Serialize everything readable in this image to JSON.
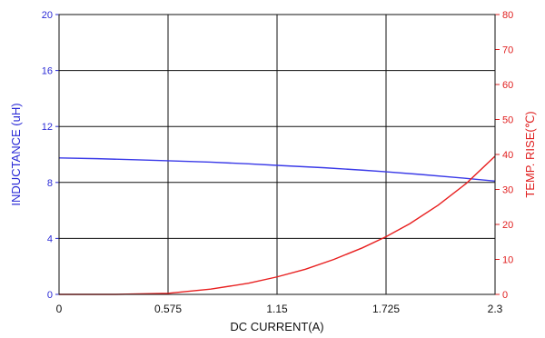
{
  "chart_data": {
    "type": "line",
    "xlabel": "DC CURRENT(A)",
    "ylabel_left": "INDUCTANCE (uH)",
    "ylabel_right": "TEMP. RISE(℃)",
    "x_ticks": [
      "0",
      "0.575",
      "1.15",
      "1.725",
      "2.3"
    ],
    "x_tick_values": [
      0,
      0.575,
      1.15,
      1.725,
      2.3
    ],
    "y_left_ticks": [
      "0",
      "4",
      "8",
      "12",
      "16",
      "20"
    ],
    "y_left_tick_values": [
      0,
      4,
      8,
      12,
      16,
      20
    ],
    "y_right_ticks": [
      "0",
      "10",
      "20",
      "30",
      "40",
      "50",
      "60",
      "70",
      "80"
    ],
    "y_right_tick_values": [
      0,
      10,
      20,
      30,
      40,
      50,
      60,
      70,
      80
    ],
    "xlim": [
      0,
      2.3
    ],
    "ylim_left": [
      0,
      20
    ],
    "ylim_right": [
      0,
      80
    ],
    "grid": true,
    "colors": {
      "left_axis": "#2a2ad6",
      "right_axis": "#e02020",
      "grid": "#111111"
    },
    "series": [
      {
        "axis": "left",
        "color": "#3a3ae8",
        "x": [
          0,
          0.2,
          0.4,
          0.575,
          0.8,
          1.0,
          1.15,
          1.4,
          1.6,
          1.725,
          1.9,
          2.1,
          2.3
        ],
        "y": [
          9.75,
          9.7,
          9.62,
          9.55,
          9.45,
          9.33,
          9.22,
          9.05,
          8.88,
          8.76,
          8.58,
          8.35,
          8.1
        ]
      },
      {
        "axis": "right",
        "color": "#e82020",
        "x": [
          0,
          0.3,
          0.575,
          0.8,
          1.0,
          1.15,
          1.3,
          1.45,
          1.6,
          1.725,
          1.85,
          2.0,
          2.15,
          2.3
        ],
        "y": [
          0,
          0,
          0.3,
          1.5,
          3.2,
          5.0,
          7.2,
          10.0,
          13.3,
          16.5,
          20.2,
          25.5,
          31.8,
          39.5
        ]
      }
    ]
  }
}
